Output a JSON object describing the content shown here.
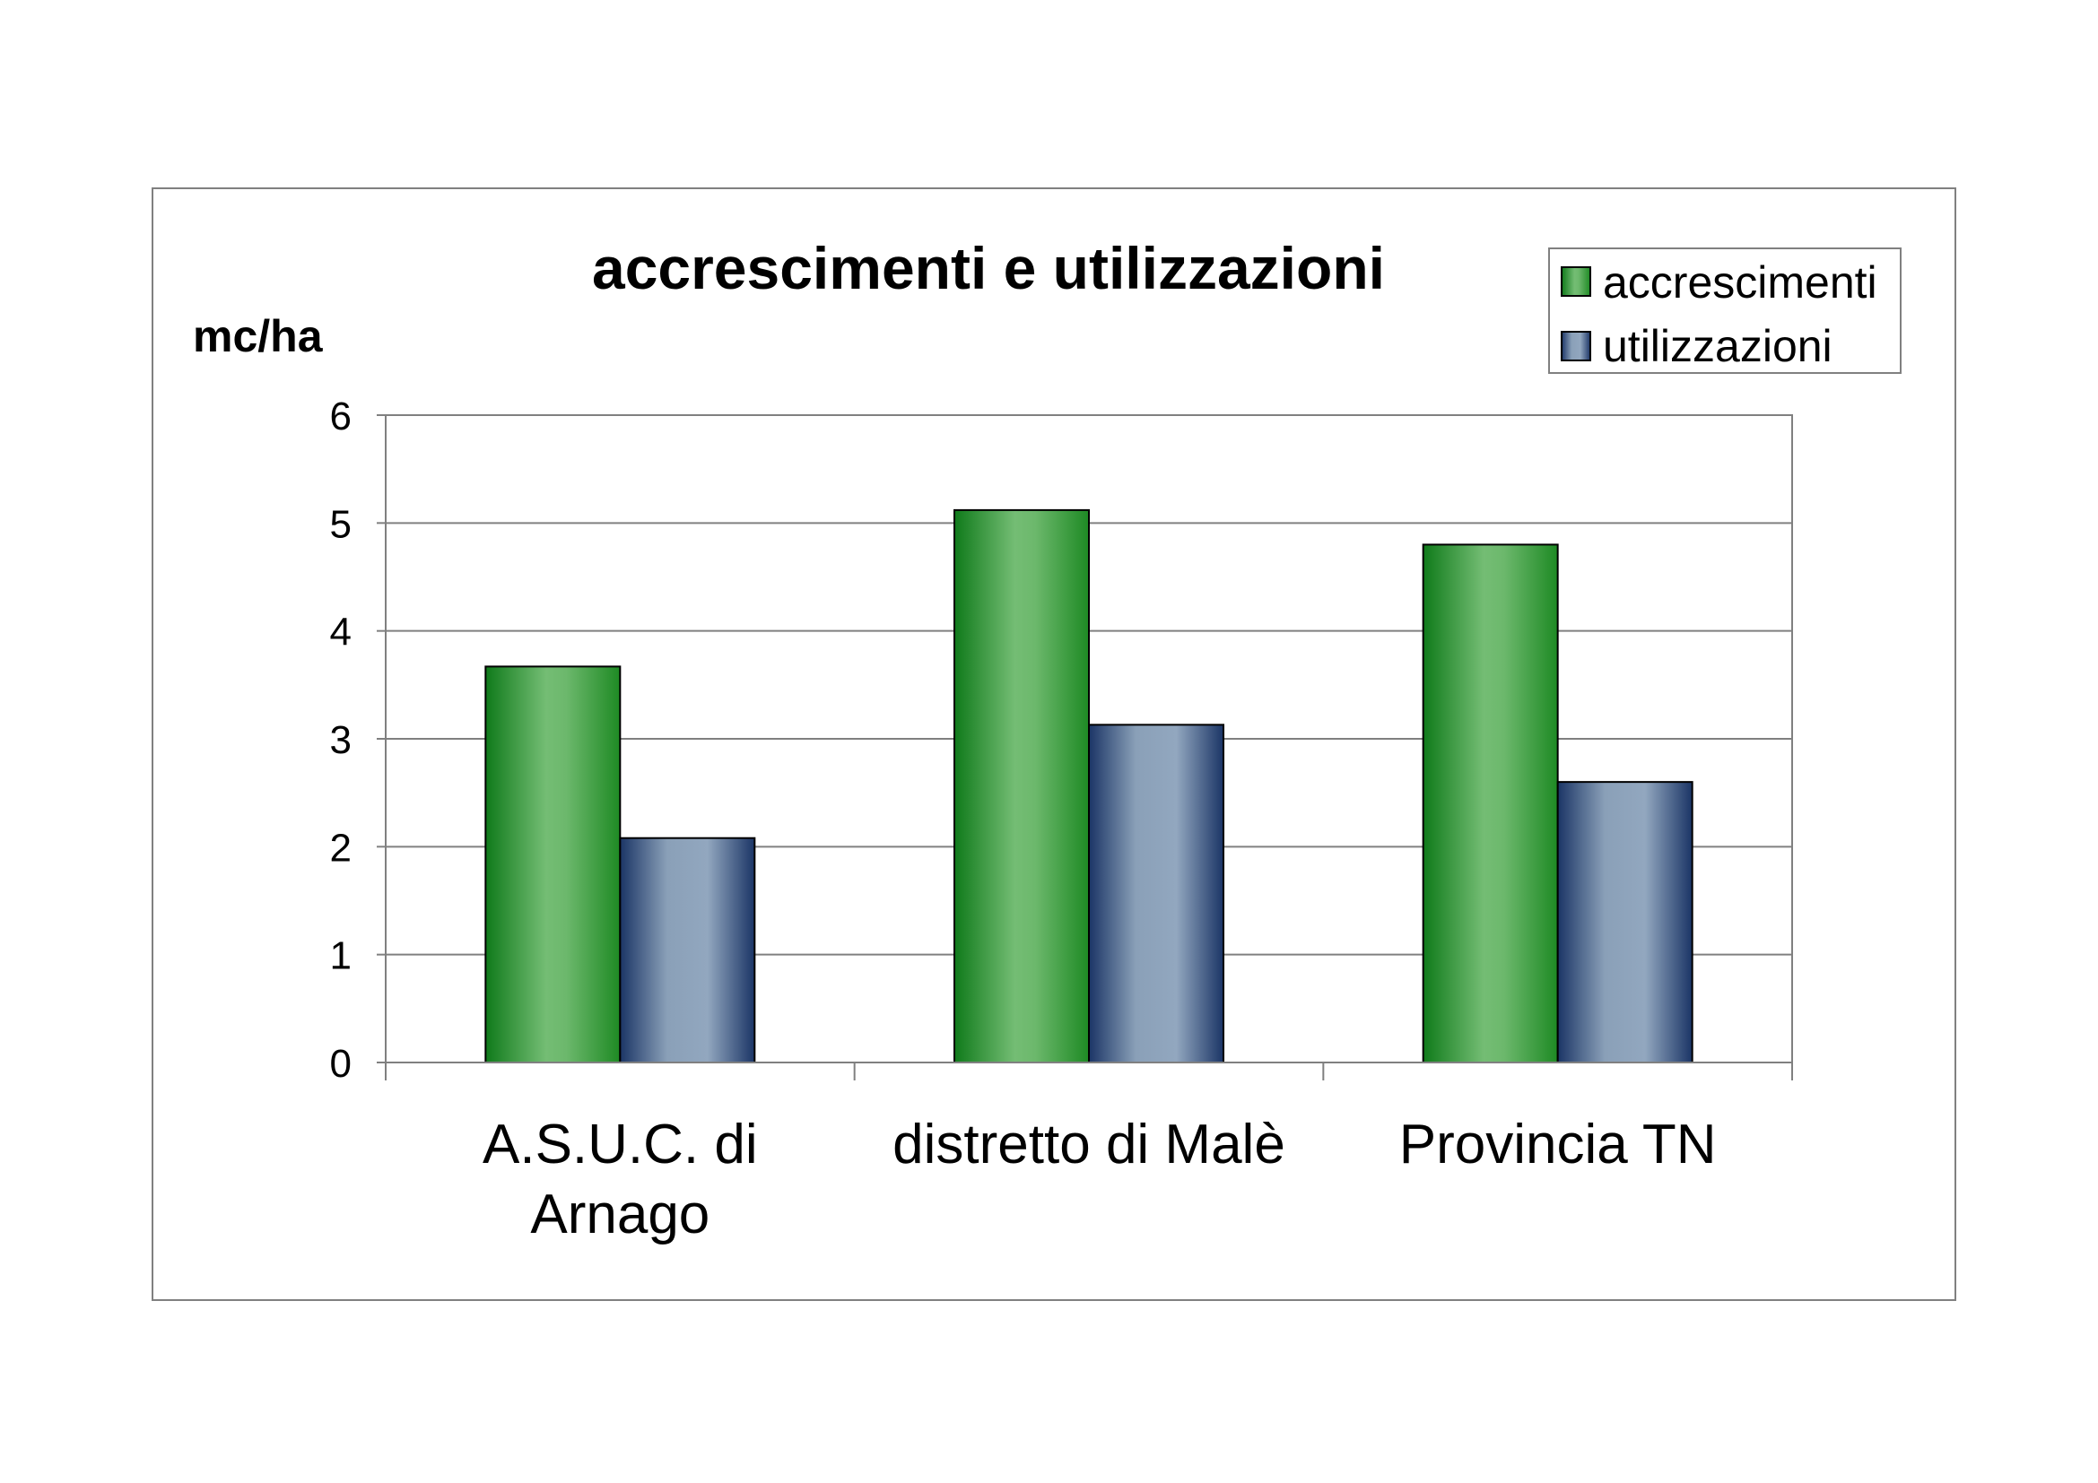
{
  "chart_data": {
    "type": "bar",
    "title": "accrescimenti e utilizzazioni",
    "ylabel": "mc/ha",
    "xlabel": "",
    "categories": [
      [
        "A.S.U.C. di",
        "Arnago"
      ],
      [
        "distretto di Malè"
      ],
      [
        "Provincia TN"
      ]
    ],
    "series": [
      {
        "name": "accrescimenti",
        "values": [
          3.67,
          5.12,
          4.8
        ],
        "color": "#2e8b2e"
      },
      {
        "name": "utilizzazioni",
        "values": [
          2.08,
          3.13,
          2.6
        ],
        "color": "#1f3864"
      }
    ],
    "ylim": [
      0,
      6
    ],
    "yticks": [
      "0",
      "1",
      "2",
      "3",
      "4",
      "5",
      "6"
    ],
    "grid": true,
    "legend_position": "top-right"
  }
}
